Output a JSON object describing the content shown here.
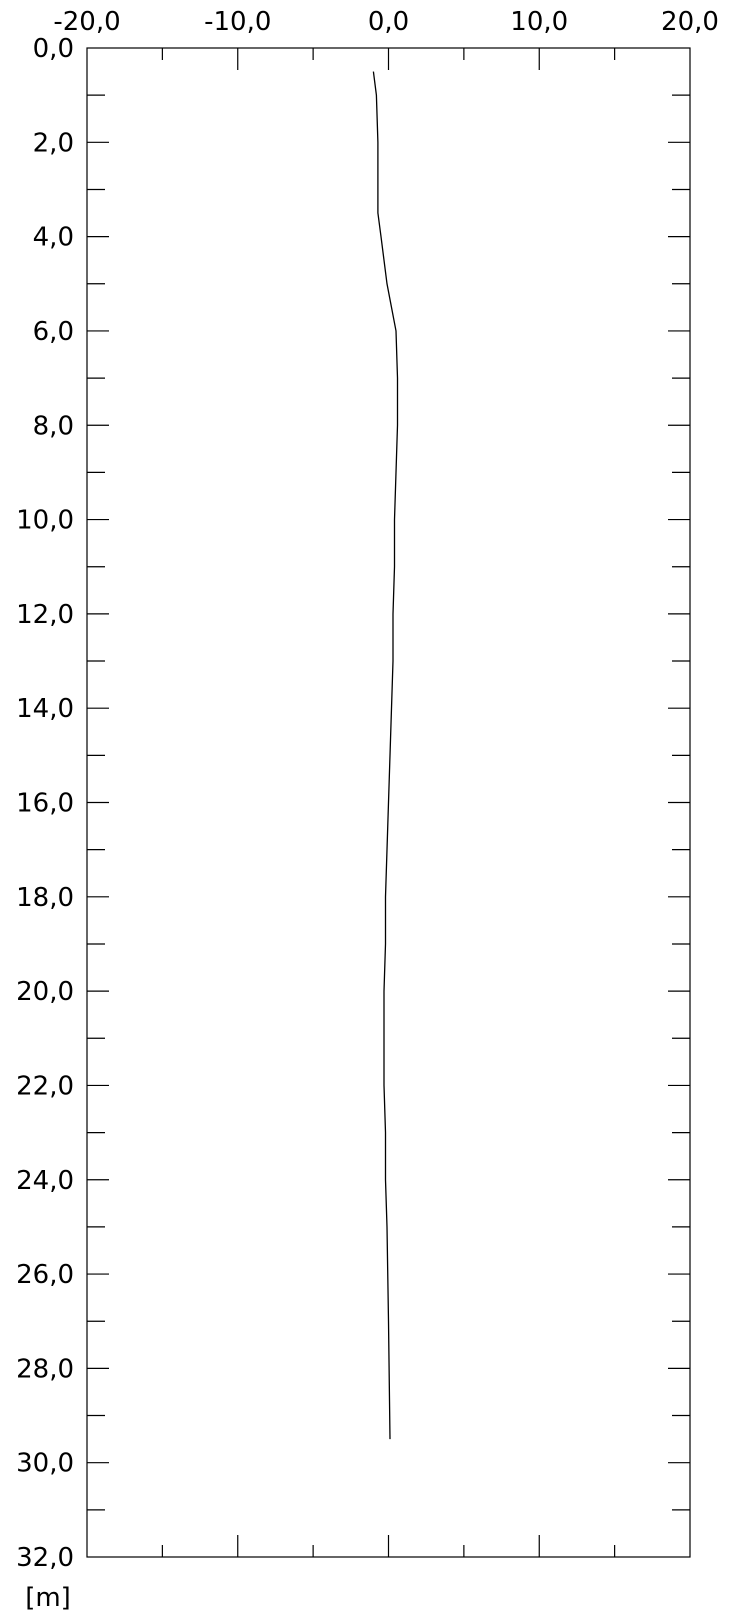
{
  "chart_data": {
    "type": "line",
    "x_ticks": [
      "-20,0",
      "-10,0",
      "0,0",
      "10,0",
      "20,0"
    ],
    "x_tick_values": [
      -20,
      -10,
      0,
      10,
      20
    ],
    "y_ticks": [
      "0,0",
      "2,0",
      "4,0",
      "6,0",
      "8,0",
      "10,0",
      "12,0",
      "14,0",
      "16,0",
      "18,0",
      "20,0",
      "22,0",
      "24,0",
      "26,0",
      "28,0",
      "30,0",
      "32,0"
    ],
    "y_tick_values": [
      0,
      2,
      4,
      6,
      8,
      10,
      12,
      14,
      16,
      18,
      20,
      22,
      24,
      26,
      28,
      30,
      32
    ],
    "xlim": [
      -20,
      20
    ],
    "ylim": [
      0,
      32
    ],
    "y_unit": "[m]",
    "x_axis_position": "top",
    "y_inverted": true,
    "minor_ticks": true,
    "grid": false,
    "series": [
      {
        "color": "#000000",
        "x": [
          -1.0,
          -0.8,
          -0.7,
          -0.7,
          -0.7,
          -0.5,
          -0.1,
          0.2,
          0.5,
          0.6,
          0.6,
          0.5,
          0.4,
          0.4,
          0.3,
          0.3,
          0.2,
          0.1,
          0.0,
          -0.1,
          -0.2,
          -0.2,
          -0.3,
          -0.3,
          -0.3,
          -0.2,
          -0.2,
          -0.1,
          0.0,
          0.1
        ],
        "y": [
          0.5,
          1.0,
          2.0,
          3.0,
          3.5,
          4.0,
          5.0,
          5.5,
          6.0,
          7.0,
          8.0,
          9.0,
          10.0,
          11.0,
          12.0,
          13.0,
          14.0,
          15.0,
          16.0,
          17.0,
          18.0,
          19.0,
          20.0,
          21.0,
          22.0,
          23.0,
          24.0,
          25.0,
          27.0,
          29.5
        ]
      }
    ]
  }
}
